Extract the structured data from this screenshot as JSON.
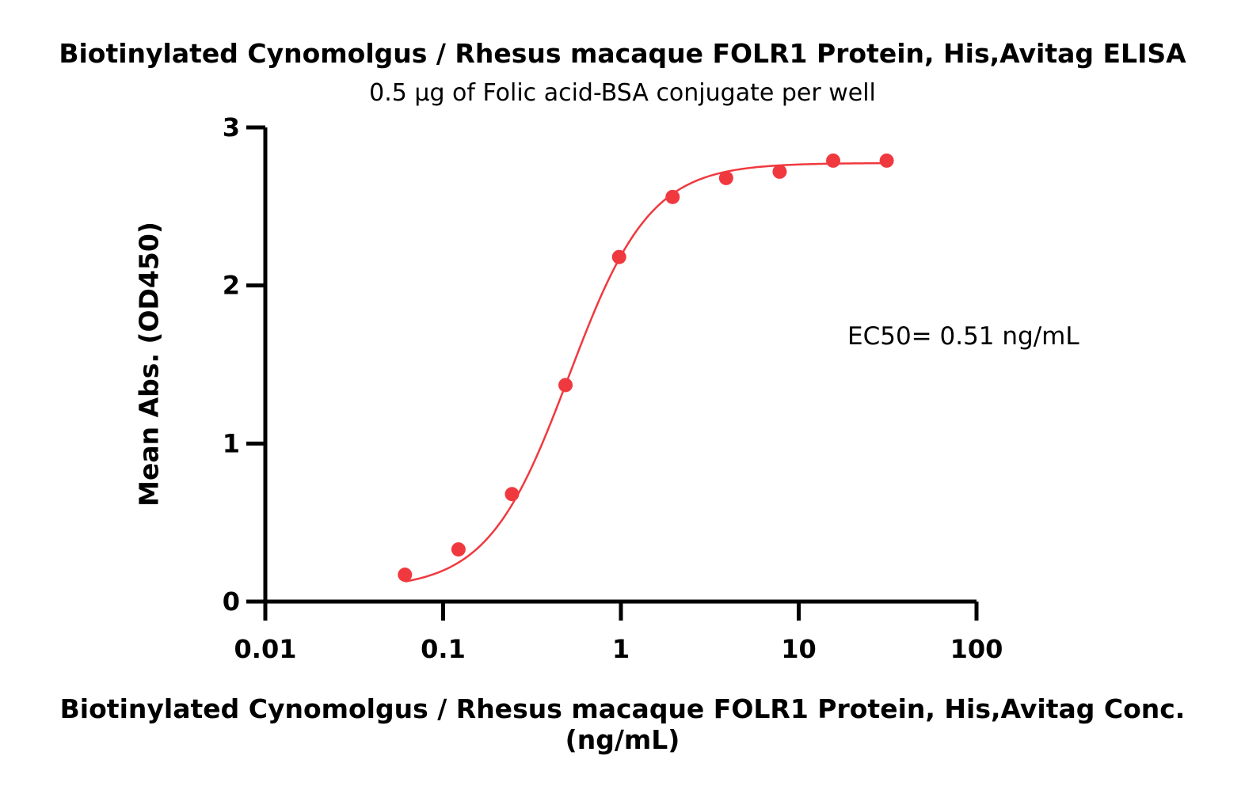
{
  "chart_data": {
    "type": "scatter",
    "title": "Biotinylated Cynomolgus / Rhesus macaque FOLR1 Protein, His,Avitag ELISA",
    "subtitle": "0.5 µg of Folic acid-BSA conjugate per well",
    "xlabel": "Biotinylated Cynomolgus / Rhesus macaque FOLR1 Protein, His,Avitag Conc. (ng/mL)",
    "ylabel": "Mean Abs. (OD450)",
    "x_scale": "log",
    "xlim": [
      0.01,
      100
    ],
    "ylim": [
      0,
      3
    ],
    "x_ticks": [
      0.01,
      0.1,
      1,
      10,
      100
    ],
    "x_tick_labels": [
      "0.01",
      "0.1",
      "1",
      "10",
      "100"
    ],
    "y_ticks": [
      0,
      1,
      2,
      3
    ],
    "y_tick_labels": [
      "0",
      "1",
      "2",
      "3"
    ],
    "grid": false,
    "annotation": "EC50= 0.51 ng/mL",
    "color": "#f0393f",
    "series": [
      {
        "x": [
          0.061,
          0.122,
          0.244,
          0.488,
          0.977,
          1.953,
          3.906,
          7.813,
          15.625,
          31.25
        ],
        "y": [
          0.17,
          0.33,
          0.68,
          1.37,
          2.18,
          2.56,
          2.68,
          2.72,
          2.79,
          2.79
        ],
        "fit": {
          "bottom": 0.08,
          "top": 2.775,
          "ec50": 0.51,
          "hill": 1.9
        }
      }
    ]
  }
}
